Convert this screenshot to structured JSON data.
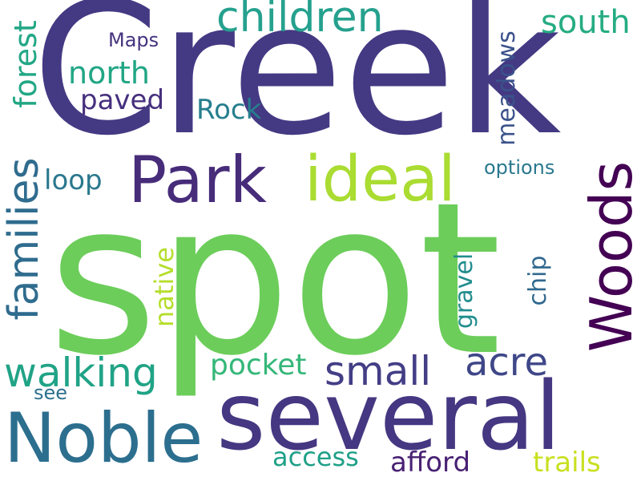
{
  "words": {
    "creek": {
      "text": "Creek",
      "color": "#443983"
    },
    "spot": {
      "text": "spot",
      "color": "#6ccd5a"
    },
    "several": {
      "text": "several",
      "color": "#453781"
    },
    "noble": {
      "text": "Noble",
      "color": "#2c6e8e"
    },
    "park": {
      "text": "Park",
      "color": "#472c7a"
    },
    "ideal": {
      "text": "ideal",
      "color": "#aadc32"
    },
    "woods": {
      "text": "Woods",
      "color": "#440154"
    },
    "children": {
      "text": "children",
      "color": "#25a18e"
    },
    "families": {
      "text": "families",
      "color": "#2f6c8e"
    },
    "walking": {
      "text": "walking",
      "color": "#20a386"
    },
    "small": {
      "text": "small",
      "color": "#433e85"
    },
    "acre": {
      "text": "acre",
      "color": "#3f4788"
    },
    "south": {
      "text": "south",
      "color": "#25ac82"
    },
    "north": {
      "text": "north",
      "color": "#21a685"
    },
    "forest": {
      "text": "forest",
      "color": "#22a785"
    },
    "paved": {
      "text": "paved",
      "color": "#46307e"
    },
    "rock": {
      "text": "Rock",
      "color": "#277e8e"
    },
    "meadows": {
      "text": "meadows",
      "color": "#3b528b"
    },
    "loop": {
      "text": "loop",
      "color": "#2a788e"
    },
    "native": {
      "text": "native",
      "color": "#b5de2b"
    },
    "pocket": {
      "text": "pocket",
      "color": "#35b779"
    },
    "gravel": {
      "text": "gravel",
      "color": "#228d8d"
    },
    "chip": {
      "text": "chip",
      "color": "#31688e"
    },
    "access": {
      "text": "access",
      "color": "#1fa088"
    },
    "afford": {
      "text": "afford",
      "color": "#482173"
    },
    "trails": {
      "text": "trails",
      "color": "#c8e020"
    },
    "maps": {
      "text": "Maps",
      "color": "#46337f"
    },
    "options": {
      "text": "options",
      "color": "#2a788e"
    },
    "see": {
      "text": "see",
      "color": "#2d708e"
    }
  }
}
